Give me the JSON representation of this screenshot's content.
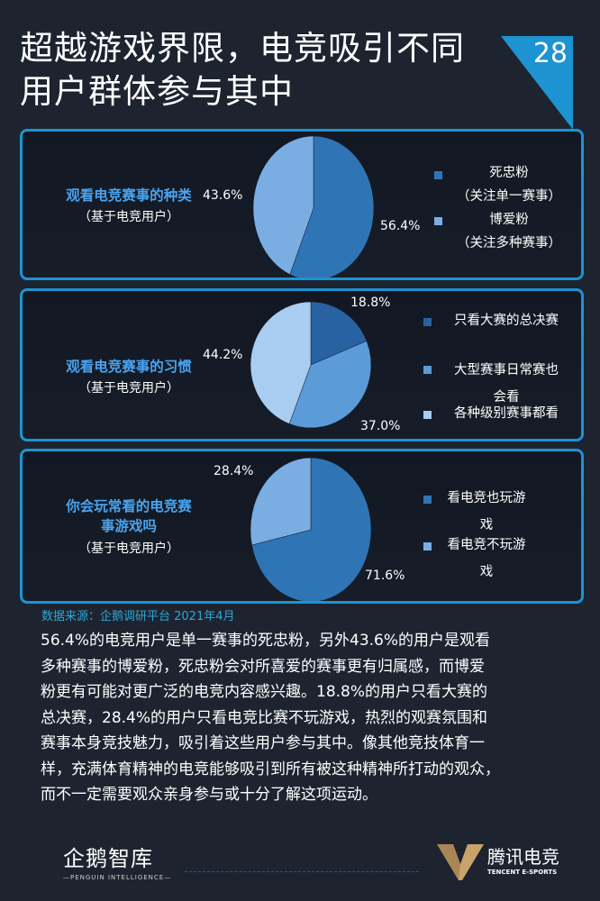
{
  "header": {
    "title_line1": "超越游戏界限，电竞吸引不同",
    "title_line2": "用户群体参与其中",
    "page_number": "28"
  },
  "chart_data": [
    {
      "type": "pie",
      "title": "观看电竞赛事的种类",
      "subtitle": "（基于电竞用户）",
      "series": [
        {
          "name": "死忠粉（关注单一赛事）",
          "legend_lines": [
            "死忠粉",
            "（关注单一赛事）"
          ],
          "value": 56.4,
          "label": "56.4%",
          "color": "#2f74b5"
        },
        {
          "name": "博爱粉（关注多种赛事）",
          "legend_lines": [
            "博爱粉",
            "（关注多种赛事）"
          ],
          "value": 43.6,
          "label": "43.6%",
          "color": "#7aaee2"
        }
      ]
    },
    {
      "type": "pie",
      "title": "观看电竞赛事的习惯",
      "subtitle": "（基于电竞用户）",
      "series": [
        {
          "name": "只看大赛的总决赛",
          "legend_lines": [
            "只看大赛的总决赛"
          ],
          "value": 18.8,
          "label": "18.8%",
          "color": "#2862a2"
        },
        {
          "name": "大型赛事日常赛也会看",
          "legend_lines": [
            "大型赛事日常赛也",
            "会看"
          ],
          "value": 37.0,
          "label": "37.0%",
          "color": "#5b9bd8"
        },
        {
          "name": "各种级别赛事都看",
          "legend_lines": [
            "各种级别赛事都看"
          ],
          "value": 44.2,
          "label": "44.2%",
          "color": "#a9cdf0"
        }
      ]
    },
    {
      "type": "pie",
      "title": "你会玩常看的电竞赛事游戏吗",
      "title_lines": [
        "你会玩常看的电竞赛",
        "事游戏吗"
      ],
      "subtitle": "（基于电竞用户）",
      "series": [
        {
          "name": "看电竞也玩游戏",
          "legend_lines": [
            "看电竞也玩游",
            "戏"
          ],
          "value": 71.6,
          "label": "71.6%",
          "color": "#2f74b5"
        },
        {
          "name": "看电竞不玩游戏",
          "legend_lines": [
            "看电竞不玩游",
            "戏"
          ],
          "value": 28.4,
          "label": "28.4%",
          "color": "#7aaee2"
        }
      ]
    }
  ],
  "source": "数据来源：企鹅调研平台 2021年4月",
  "body_lines": [
    "56.4%的电竞用户是单一赛事的死忠粉，另外43.6%的用户是观看",
    "多种赛事的博爱粉，死忠粉会对所喜爱的赛事更有归属感，而博爱",
    "粉更有可能对更广泛的电竞内容感兴趣。18.8%的用户只看大赛的",
    "总决赛，28.4%的用户只看电竞比赛不玩游戏，热烈的观赛氛围和",
    "赛事本身竞技魅力，吸引着这些用户参与其中。像其他竞技体育一",
    "样，充满体育精神的电竞能够吸引到所有被这种精神所打动的观众，",
    "而不一定需要观众亲身参与或十分了解这项运动。"
  ],
  "footer": {
    "left_logo": "企鹅智库",
    "left_logo_sub": "—PENGUIN INTELLIGENCE—",
    "right_logo": "腾讯电竞",
    "right_logo_sub": "TENCENT E-SPORTS",
    "accent": "#c9a46a"
  }
}
